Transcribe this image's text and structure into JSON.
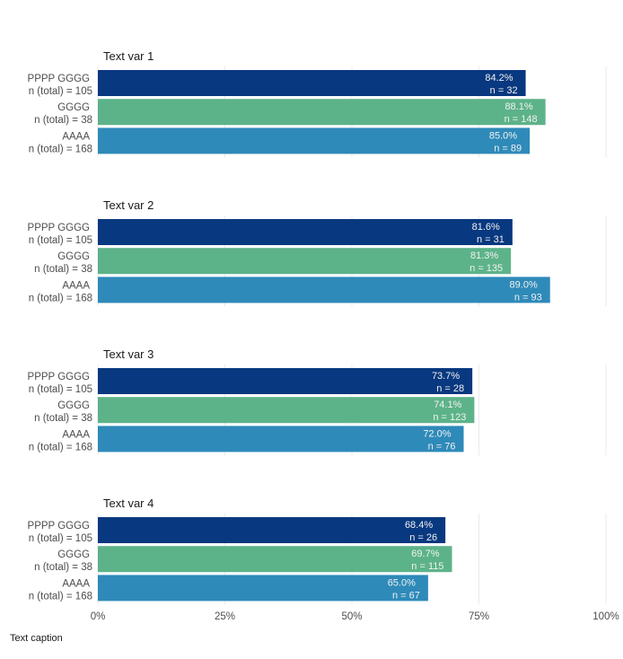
{
  "chart_data": {
    "type": "bar",
    "orientation": "horizontal",
    "caption": "Text caption",
    "xlim": [
      0,
      100
    ],
    "x_ticks": [
      "0%",
      "25%",
      "50%",
      "75%",
      "100%"
    ],
    "x_tick_values": [
      0,
      25,
      50,
      75,
      100
    ],
    "grid": true,
    "colors": {
      "PPPP GGGG": "#08387f",
      "GGGG": "#5db389",
      "AAAA": "#2e8ab9"
    },
    "categories": [
      {
        "name": "PPPP GGGG",
        "label2": "n (total) = 105"
      },
      {
        "name": "GGGG",
        "label2": "n (total) = 38"
      },
      {
        "name": "AAAA",
        "label2": "n (total) = 168"
      }
    ],
    "panels": [
      {
        "title": "Text var 1",
        "values": [
          84.2,
          88.1,
          85.0
        ],
        "pct_labels": [
          "84.2%",
          "88.1%",
          "85.0%"
        ],
        "n_labels": [
          "n = 32",
          "n = 148",
          "n = 89"
        ]
      },
      {
        "title": "Text var 2",
        "values": [
          81.6,
          81.3,
          89.0
        ],
        "pct_labels": [
          "81.6%",
          "81.3%",
          "89.0%"
        ],
        "n_labels": [
          "n = 31",
          "n = 135",
          "n = 93"
        ]
      },
      {
        "title": "Text var 3",
        "values": [
          73.7,
          74.1,
          72.0
        ],
        "pct_labels": [
          "73.7%",
          "74.1%",
          "72.0%"
        ],
        "n_labels": [
          "n = 28",
          "n = 123",
          "n = 76"
        ]
      },
      {
        "title": "Text var 4",
        "values": [
          68.4,
          69.7,
          65.0
        ],
        "pct_labels": [
          "68.4%",
          "69.7%",
          "65.0%"
        ],
        "n_labels": [
          "n = 26",
          "n = 115",
          "n = 67"
        ]
      }
    ]
  }
}
